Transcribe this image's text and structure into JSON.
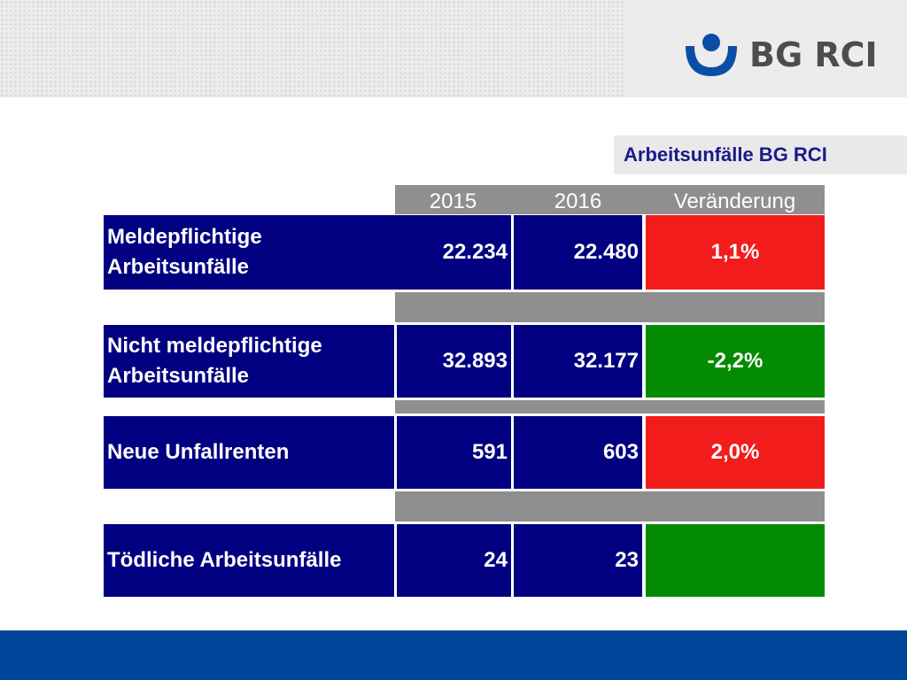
{
  "logo": {
    "text": "BG RCI",
    "mark_color": "#0a4ea5"
  },
  "subtitle": "Arbeitsunfälle BG RCI",
  "table": {
    "headers": [
      "2015",
      "2016",
      "Veränderung"
    ],
    "rows": [
      {
        "label": "Meldepflichtige Arbeitsunfälle",
        "v2015": "22.234",
        "v2016": "22.480",
        "change": "1,1%",
        "change_color": "#f21c1c"
      },
      {
        "label": "Nicht meldepflichtige Arbeitsunfälle",
        "v2015": "32.893",
        "v2016": "32.177",
        "change": "-2,2%",
        "change_color": "#038b03"
      },
      {
        "label": "Neue Unfallrenten",
        "v2015": "591",
        "v2016": "603",
        "change": "2,0%",
        "change_color": "#f21c1c"
      },
      {
        "label": "Tödliche Arbeitsunfälle",
        "v2015": "24",
        "v2016": "23",
        "change": "",
        "change_color": "#038b03"
      }
    ]
  },
  "colors": {
    "row_bg": "#000080",
    "header_bg": "#8f8f8f",
    "footer": "#00469a",
    "subtitle_text": "#1a1a8a"
  }
}
